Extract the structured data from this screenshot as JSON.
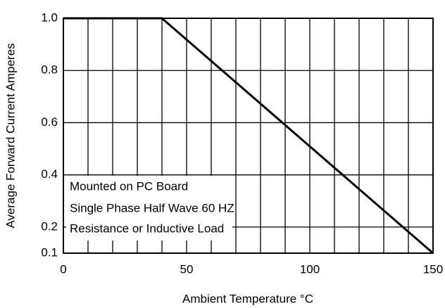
{
  "chart_data": {
    "type": "line",
    "xlabel": "Ambient Temperature °C",
    "ylabel": "Average Forward Current  Amperes",
    "x": [
      0,
      40,
      150
    ],
    "series": [
      {
        "values": [
          1.0,
          1.0,
          0.1
        ],
        "color": "#000000"
      }
    ],
    "xlim": [
      0,
      150
    ],
    "xticks": [
      0,
      50,
      100,
      150
    ],
    "minor_xticks": [
      10,
      20,
      30,
      40,
      60,
      70,
      80,
      90,
      110,
      120,
      130,
      140
    ],
    "ylim": [
      0.1,
      1.0
    ],
    "yticks": [
      {
        "value": 0.1,
        "label": "0.1"
      },
      {
        "value": 0.2,
        "label": "0.2"
      },
      {
        "value": 0.4,
        "label": "0.4"
      },
      {
        "value": 0.6,
        "label": "0.6"
      },
      {
        "value": 0.8,
        "label": "0.8"
      },
      {
        "value": 1.0,
        "label": "1.0"
      }
    ],
    "grid": true,
    "annotations": [
      "Mounted on PC Board",
      "Single Phase Half Wave 60 HZ",
      "Resistance or Inductive Load"
    ]
  }
}
